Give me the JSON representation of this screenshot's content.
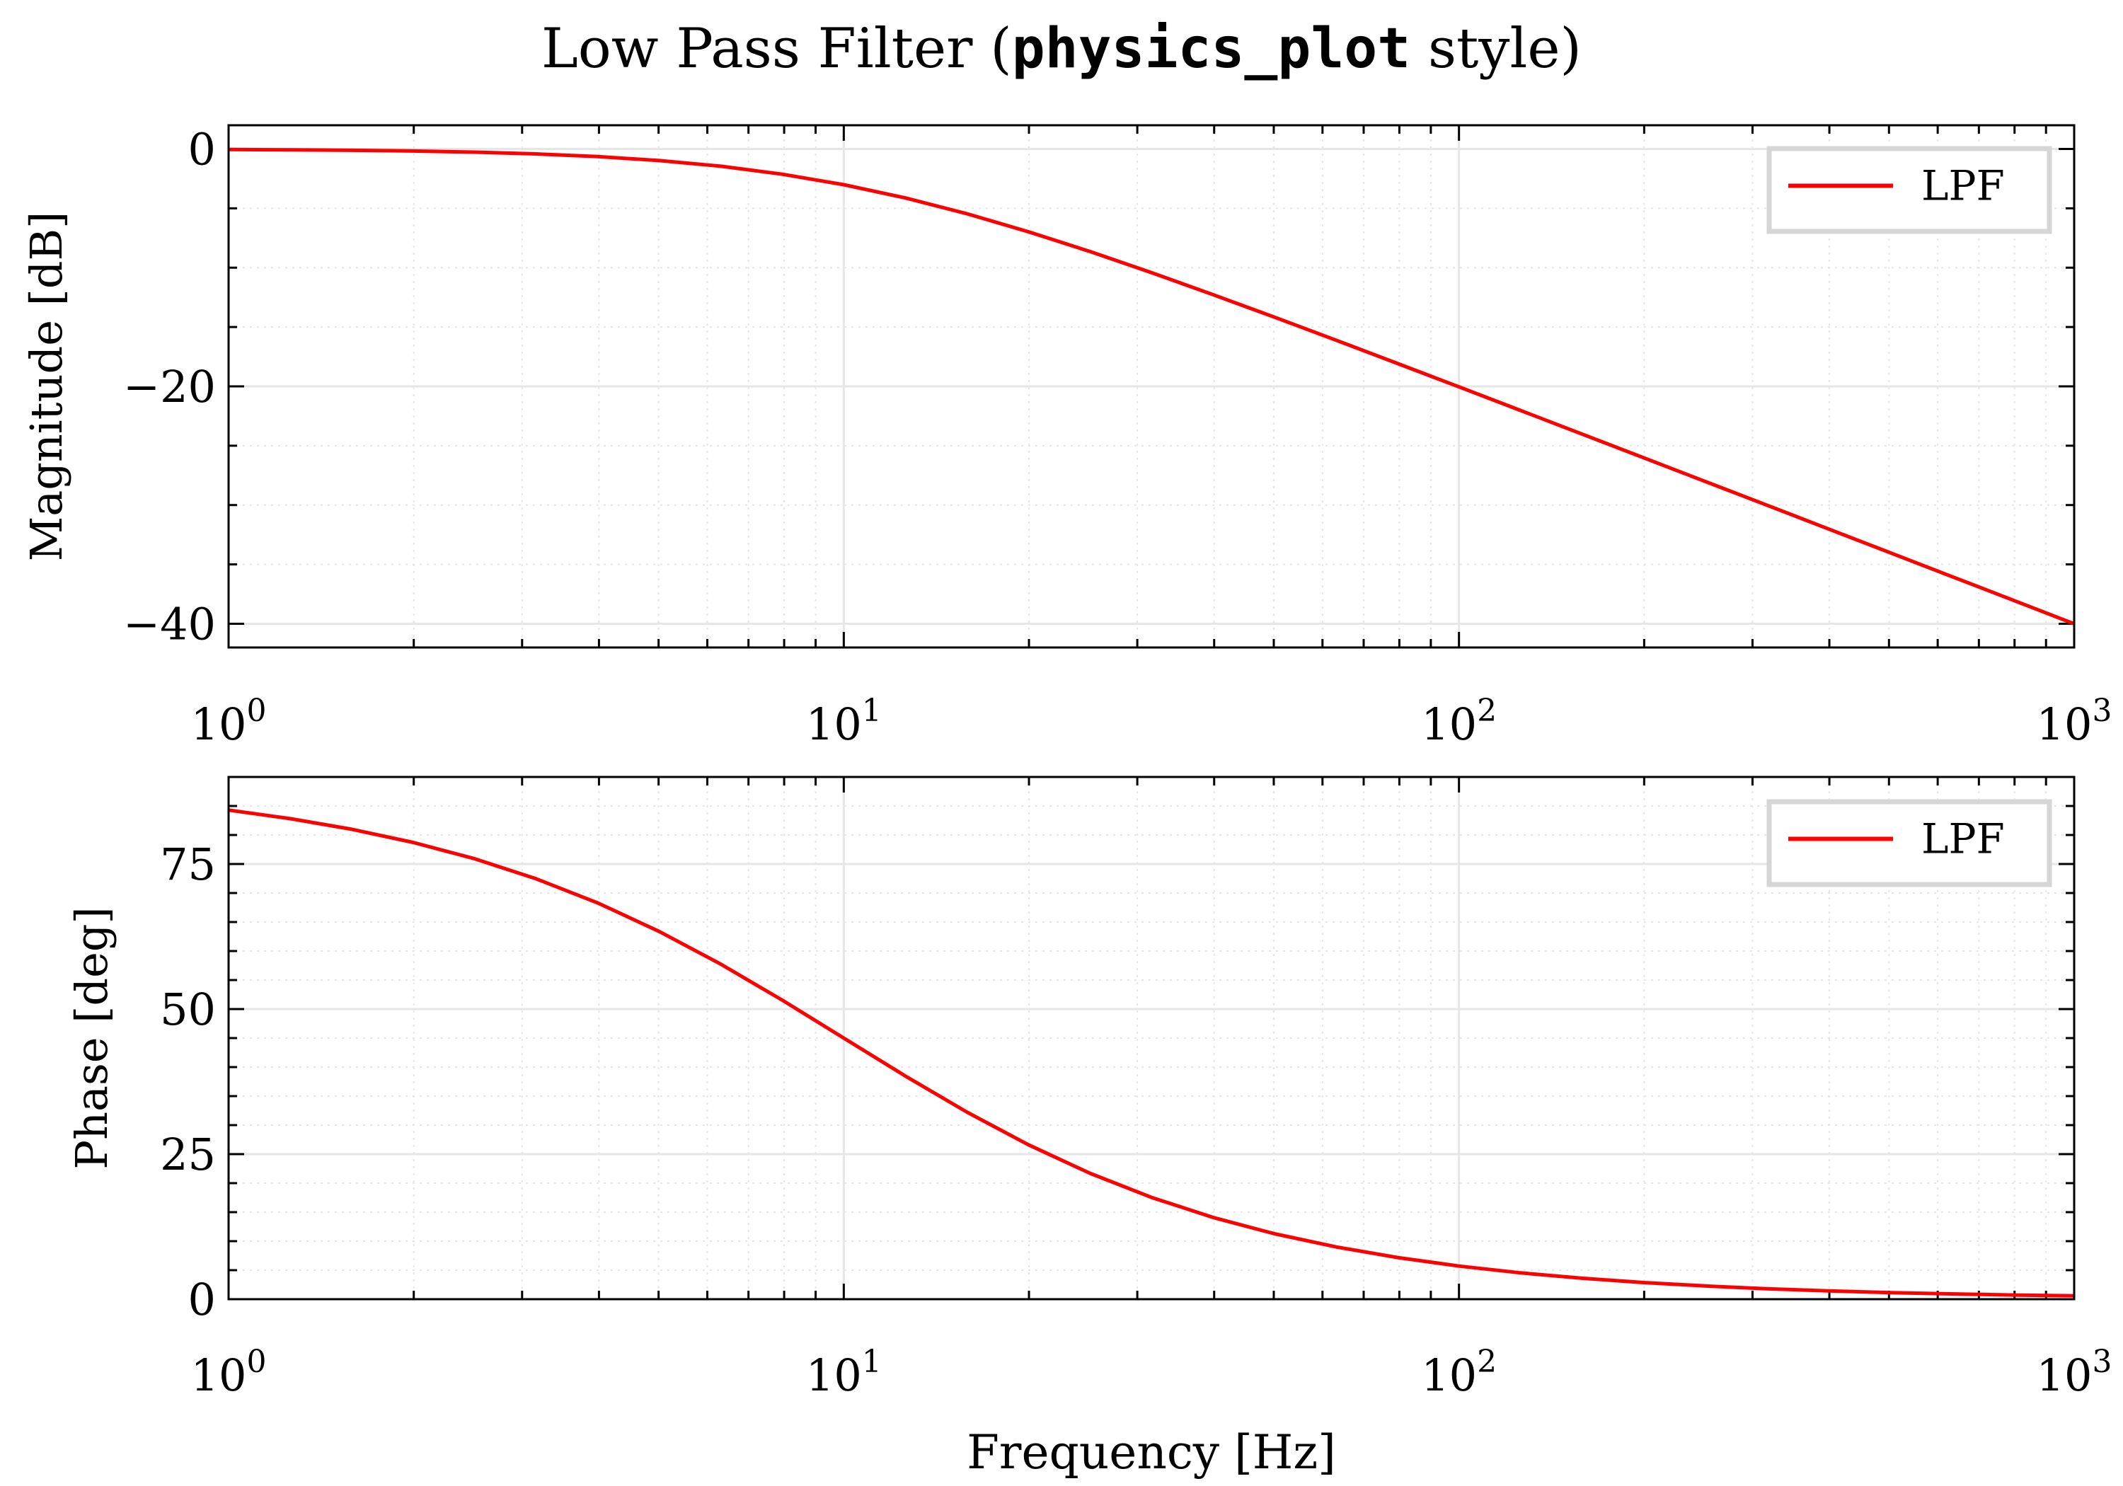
{
  "title": {
    "prefix": "Low Pass Filter (",
    "code": "physics_plot",
    "suffix": " style)"
  },
  "colors": {
    "series": "#ff0000",
    "grid": "#e6e6e6",
    "legend_border": "#d6d6d6",
    "axis": "#000000"
  },
  "chart_data": [
    {
      "type": "line",
      "xlabel": "",
      "ylabel": "Magnitude [dB]",
      "xscale": "log",
      "xlim": [
        1,
        1000
      ],
      "ylim": [
        -42,
        2
      ],
      "xticks": [
        1,
        10,
        100,
        1000
      ],
      "xtick_labels": [
        {
          "base": "10",
          "exp": "0"
        },
        {
          "base": "10",
          "exp": "1"
        },
        {
          "base": "10",
          "exp": "2"
        },
        {
          "base": "10",
          "exp": "3"
        }
      ],
      "yticks": [
        0,
        -20,
        -40
      ],
      "ytick_labels": [
        "0",
        "−20",
        "−40"
      ],
      "yminor_step": 5,
      "grid": true,
      "legend": "top-right",
      "series": [
        {
          "name": "LPF",
          "x": [
            1,
            1.259,
            1.585,
            1.995,
            2.512,
            3.162,
            3.981,
            5.012,
            6.31,
            7.943,
            10,
            12.59,
            15.85,
            19.95,
            25.12,
            31.62,
            39.81,
            50.12,
            63.1,
            79.43,
            100,
            125.9,
            158.5,
            199.5,
            251.2,
            316.2,
            398.1,
            501.2,
            631.0,
            794.3,
            1000
          ],
          "y": [
            -0.043,
            -0.068,
            -0.108,
            -0.17,
            -0.266,
            -0.414,
            -0.639,
            -0.973,
            -1.455,
            -2.125,
            -3.01,
            -4.124,
            -5.455,
            -6.973,
            -8.639,
            -10.414,
            -12.266,
            -14.17,
            -16.108,
            -18.068,
            -20.043,
            -22.03,
            -24.02,
            -26.01,
            -28.01,
            -30.0,
            -32.0,
            -34.0,
            -36.0,
            -38.0,
            -40.0
          ]
        }
      ]
    },
    {
      "type": "line",
      "xlabel": "Frequency [Hz]",
      "ylabel": "Phase [deg]",
      "xscale": "log",
      "xlim": [
        1,
        1000
      ],
      "ylim": [
        0,
        90
      ],
      "xticks": [
        1,
        10,
        100,
        1000
      ],
      "xtick_labels": [
        {
          "base": "10",
          "exp": "0"
        },
        {
          "base": "10",
          "exp": "1"
        },
        {
          "base": "10",
          "exp": "2"
        },
        {
          "base": "10",
          "exp": "3"
        }
      ],
      "yticks": [
        0,
        25,
        50,
        75
      ],
      "ytick_labels": [
        "0",
        "25",
        "50",
        "75"
      ],
      "yminor_step": 5,
      "grid": true,
      "legend": "top-right",
      "series": [
        {
          "name": "LPF",
          "x": [
            1,
            1.259,
            1.585,
            1.995,
            2.512,
            3.162,
            3.981,
            5.012,
            6.31,
            7.943,
            10,
            12.59,
            15.85,
            19.95,
            25.12,
            31.62,
            39.81,
            50.12,
            63.1,
            79.43,
            100,
            125.9,
            158.5,
            199.5,
            251.2,
            316.2,
            398.1,
            501.2,
            631.0,
            794.3,
            1000
          ],
          "y": [
            84.29,
            82.82,
            80.99,
            78.72,
            75.9,
            72.45,
            68.29,
            63.38,
            57.75,
            51.54,
            45.0,
            38.46,
            32.25,
            26.62,
            21.71,
            17.55,
            14.1,
            11.28,
            9.01,
            7.18,
            5.71,
            4.54,
            3.61,
            2.87,
            2.28,
            1.81,
            1.44,
            1.14,
            0.91,
            0.72,
            0.57
          ]
        }
      ]
    }
  ]
}
